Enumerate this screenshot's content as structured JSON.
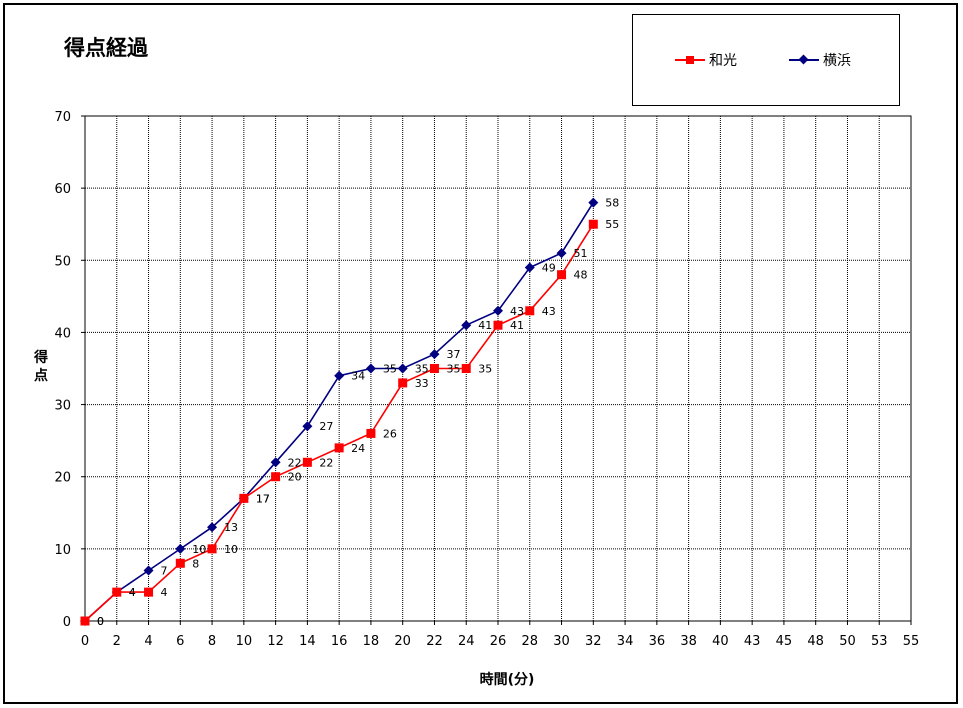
{
  "chart_data": {
    "type": "line",
    "title": "得点経過",
    "xlabel": "時間(分)",
    "ylabel": "得点",
    "x_ticks": [
      "0",
      "2",
      "4",
      "6",
      "8",
      "10",
      "12",
      "14",
      "16",
      "18",
      "20",
      "22",
      "24",
      "26",
      "28",
      "30",
      "32",
      "34",
      "36",
      "38",
      "40",
      "43",
      "45",
      "48",
      "50",
      "53",
      "55"
    ],
    "ylim": [
      0,
      70
    ],
    "y_ticks": [
      0,
      10,
      20,
      30,
      40,
      50,
      60,
      70
    ],
    "grid": true,
    "legend_position": "top-right",
    "series": [
      {
        "name": "和光",
        "color": "#ff0000",
        "marker": "square",
        "x": [
          0,
          2,
          4,
          6,
          8,
          10,
          12,
          14,
          16,
          18,
          20,
          22,
          24,
          26,
          28,
          30,
          32
        ],
        "values": [
          0,
          4,
          4,
          8,
          10,
          17,
          20,
          22,
          24,
          26,
          33,
          35,
          35,
          41,
          43,
          48,
          55
        ],
        "labels": [
          "0",
          "4",
          "4",
          "8",
          "10",
          "17",
          "20",
          "22",
          "24",
          "26",
          "33",
          "35",
          "35",
          "41",
          "43",
          "48",
          "55"
        ]
      },
      {
        "name": "横浜",
        "color": "#000080",
        "marker": "diamond",
        "x": [
          0,
          2,
          4,
          6,
          8,
          10,
          12,
          14,
          16,
          18,
          20,
          22,
          24,
          26,
          28,
          30,
          32
        ],
        "values": [
          0,
          4,
          7,
          10,
          13,
          17,
          22,
          27,
          34,
          35,
          35,
          37,
          41,
          43,
          49,
          51,
          58
        ],
        "labels": [
          "0",
          "4",
          "7",
          "10",
          "13",
          "17",
          "22",
          "27",
          "34",
          "35",
          "35",
          "37",
          "41",
          "43",
          "49",
          "51",
          "58"
        ]
      }
    ]
  }
}
